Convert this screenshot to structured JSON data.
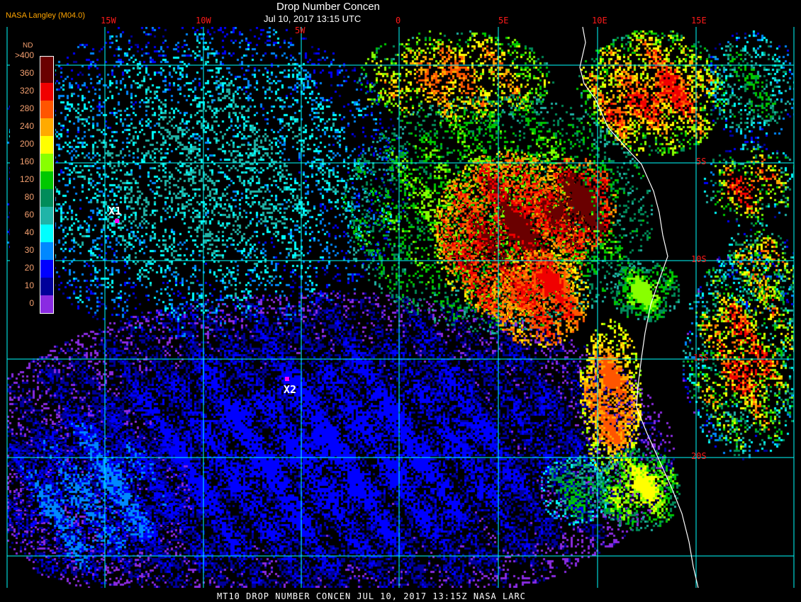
{
  "header": {
    "product_title": "Drop Number Concen",
    "datetime": "Jul 10, 2017 13:15 UTC",
    "organization": "NASA Langley (M04.0)"
  },
  "map": {
    "longitude_labels": [
      "15W",
      "10W",
      "5W",
      "0",
      "5E",
      "10E",
      "15E"
    ],
    "latitude_labels": [
      "5S",
      "10S",
      "15S",
      "20S"
    ],
    "grid_color": "#00ffff",
    "coastline_color": "#ffffff",
    "markers": [
      {
        "label": "X1",
        "color": "#ff00ff"
      },
      {
        "label": "X2",
        "color": "#ff00ff"
      }
    ]
  },
  "legend": {
    "unit": "ND",
    "entries": [
      {
        "label": ">400",
        "color": "#6a0000"
      },
      {
        "label": "360",
        "color": "#6a0000"
      },
      {
        "label": "320",
        "color": "#f00000"
      },
      {
        "label": "280",
        "color": "#ff5500"
      },
      {
        "label": "240",
        "color": "#ffaa00"
      },
      {
        "label": "200",
        "color": "#ffff00"
      },
      {
        "label": "160",
        "color": "#88ff00"
      },
      {
        "label": "120",
        "color": "#00c800"
      },
      {
        "label": "80",
        "color": "#008c5a"
      },
      {
        "label": "60",
        "color": "#20b4a8"
      },
      {
        "label": "40",
        "color": "#00ffff"
      },
      {
        "label": "30",
        "color": "#0088ff"
      },
      {
        "label": "20",
        "color": "#0000ff"
      },
      {
        "label": "10",
        "color": "#00009a"
      },
      {
        "label": "0",
        "color": "#8a2be2"
      }
    ]
  },
  "footer": {
    "text": "MT10  DROP NUMBER CONCEN   JUL 10, 2017 13:15Z   NASA LARC"
  }
}
